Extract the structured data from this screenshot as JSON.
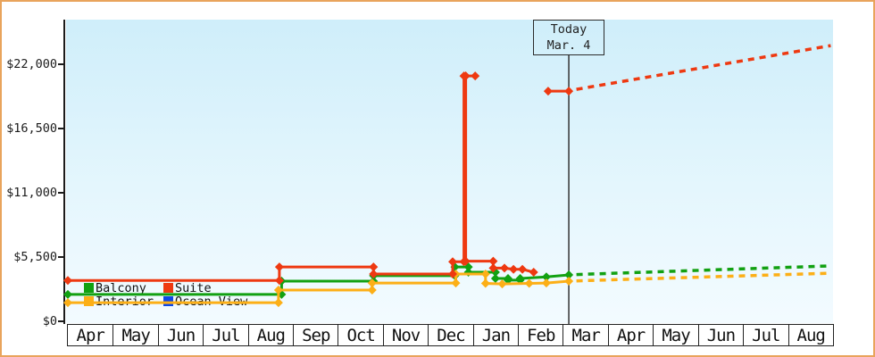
{
  "frame": {
    "border_color": "#e9a45c",
    "plot_background_top": "#cfeefa",
    "plot_background_bottom": "#f3fbff"
  },
  "chart_data": {
    "type": "line",
    "description": "Cabin price history by category with future projection (dashed) after today",
    "grid": "off",
    "y_axis": {
      "tick_labels": [
        "$0",
        "$5,500",
        "$11,000",
        "$16,500",
        "$22,000"
      ],
      "tick_values": [
        0,
        5500,
        11000,
        16500,
        22000
      ],
      "ylim": [
        0,
        25800
      ],
      "currency": "USD"
    },
    "x_axis": {
      "months": [
        "Apr",
        "May",
        "Jun",
        "Jul",
        "Aug",
        "Sep",
        "Oct",
        "Nov",
        "Dec",
        "Jan",
        "Feb",
        "Mar",
        "Apr",
        "May",
        "Jun",
        "Jul",
        "Aug"
      ],
      "x_unit": "months since first Apr tick (0 = Apr 1)"
    },
    "today": {
      "line1": "Today",
      "line2": "Mar. 4",
      "x_month_offset": 11.13,
      "line_color": "#333333"
    },
    "legend": [
      {
        "label": "Balcony",
        "color": "#12a112"
      },
      {
        "label": "Suite",
        "color": "#ee3911"
      },
      {
        "label": "Interior",
        "color": "#fcaf17"
      },
      {
        "label": "Ocean View",
        "color": "#0d47e8"
      }
    ],
    "series": [
      {
        "name": "Balcony",
        "color": "#12a112",
        "segments": [
          {
            "style": "solid",
            "points": [
              [
                0,
                2300
              ],
              [
                4.75,
                2300
              ],
              [
                4.75,
                3440
              ],
              [
                6.79,
                3440
              ],
              [
                6.79,
                3900
              ],
              [
                8.6,
                3900
              ],
              [
                8.6,
                4650
              ],
              [
                8.9,
                4650
              ],
              [
                8.9,
                4200
              ],
              [
                9.5,
                4200
              ],
              [
                9.5,
                3670
              ],
              [
                9.78,
                3670
              ],
              [
                9.78,
                3520
              ],
              [
                10.05,
                3520
              ],
              [
                10.05,
                3670
              ],
              [
                10.63,
                3800
              ],
              [
                11.13,
                3970
              ]
            ]
          },
          {
            "style": "dashed",
            "points": [
              [
                11.3,
                4000
              ],
              [
                16.95,
                4740
              ]
            ]
          }
        ]
      },
      {
        "name": "Suite",
        "color": "#ee3911",
        "segments": [
          {
            "style": "solid",
            "points": [
              [
                0,
                3500
              ],
              [
                4.7,
                3500
              ],
              [
                4.7,
                4650
              ],
              [
                6.79,
                4650
              ],
              [
                6.79,
                4050
              ],
              [
                8.55,
                4050
              ],
              [
                8.55,
                5100
              ],
              [
                8.8,
                5100
              ],
              [
                8.8,
                21000
              ],
              [
                8.84,
                21000
              ],
              [
                8.84,
                5150
              ],
              [
                9.45,
                5150
              ],
              [
                9.45,
                4550
              ],
              [
                9.7,
                4550
              ],
              [
                9.9,
                4450
              ],
              [
                10.1,
                4450
              ],
              [
                10.35,
                4200
              ]
            ]
          },
          {
            "style": "solid",
            "points": [
              [
                8.84,
                21000
              ],
              [
                9.05,
                21000
              ]
            ]
          },
          {
            "style": "solid",
            "points": [
              [
                10.67,
                19700
              ],
              [
                11.13,
                19700
              ]
            ]
          },
          {
            "style": "dashed",
            "points": [
              [
                11.3,
                19850
              ],
              [
                16.95,
                23600
              ]
            ]
          }
        ]
      },
      {
        "name": "Interior",
        "color": "#fcaf17",
        "segments": [
          {
            "style": "solid",
            "points": [
              [
                0,
                1600
              ],
              [
                4.68,
                1600
              ],
              [
                4.68,
                2670
              ],
              [
                6.76,
                2670
              ],
              [
                6.76,
                3280
              ],
              [
                8.62,
                3280
              ],
              [
                8.62,
                4050
              ],
              [
                9.28,
                4050
              ],
              [
                9.28,
                3250
              ],
              [
                9.65,
                3200
              ],
              [
                10.25,
                3250
              ],
              [
                10.63,
                3280
              ],
              [
                11.13,
                3440
              ]
            ]
          },
          {
            "style": "dashed",
            "points": [
              [
                11.3,
                3460
              ],
              [
                16.95,
                4120
              ]
            ]
          }
        ]
      },
      {
        "name": "Ocean View",
        "color": "#0d47e8",
        "segments": []
      }
    ]
  }
}
